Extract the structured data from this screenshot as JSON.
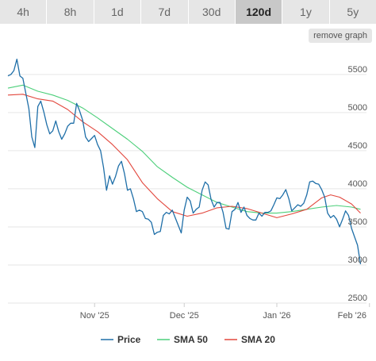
{
  "tabs": [
    {
      "label": "4h"
    },
    {
      "label": "8h"
    },
    {
      "label": "1d"
    },
    {
      "label": "7d"
    },
    {
      "label": "30d"
    },
    {
      "label": "120d",
      "active": true
    },
    {
      "label": "1y"
    },
    {
      "label": "5y"
    }
  ],
  "remove_graph_label": "remove graph",
  "colors": {
    "price": "#1f6fa8",
    "sma50": "#4ccf7a",
    "sma20": "#e2473d",
    "grid": "#e6e6e6",
    "active_tab": "#c8c8c8"
  },
  "chart_data": {
    "type": "line",
    "title": "",
    "xlabel": "",
    "ylabel": "",
    "x_range": [
      0,
      120
    ],
    "ylim": [
      2500,
      5800
    ],
    "y_ticks": [
      2500,
      3000,
      3500,
      4000,
      4500,
      5000,
      5500
    ],
    "y_tick_labels": [
      "2500",
      "3000",
      "3500",
      "4000",
      "4500",
      "5000",
      "5500"
    ],
    "x_ticks": [
      {
        "x": 29,
        "label": "Nov '25"
      },
      {
        "x": 59,
        "label": "Dec '25"
      },
      {
        "x": 90,
        "label": "Jan '26"
      },
      {
        "x": 121,
        "label": "Feb '26"
      }
    ],
    "grid": true,
    "legend_position": "bottom",
    "series": [
      {
        "name": "Price",
        "color": "#1f6fa8",
        "points": [
          [
            0,
            5480
          ],
          [
            1,
            5500
          ],
          [
            2,
            5550
          ],
          [
            3,
            5700
          ],
          [
            4,
            5480
          ],
          [
            5,
            5450
          ],
          [
            6,
            5250
          ],
          [
            7,
            5050
          ],
          [
            8,
            4680
          ],
          [
            9,
            4540
          ],
          [
            10,
            5080
          ],
          [
            11,
            5150
          ],
          [
            12,
            5010
          ],
          [
            13,
            4840
          ],
          [
            14,
            4720
          ],
          [
            15,
            4760
          ],
          [
            16,
            4890
          ],
          [
            17,
            4750
          ],
          [
            18,
            4650
          ],
          [
            19,
            4720
          ],
          [
            20,
            4820
          ],
          [
            21,
            4860
          ],
          [
            22,
            4860
          ],
          [
            23,
            5120
          ],
          [
            24,
            5020
          ],
          [
            25,
            4900
          ],
          [
            26,
            4680
          ],
          [
            27,
            4620
          ],
          [
            28,
            4660
          ],
          [
            29,
            4700
          ],
          [
            30,
            4580
          ],
          [
            31,
            4500
          ],
          [
            32,
            4280
          ],
          [
            33,
            3980
          ],
          [
            34,
            4170
          ],
          [
            35,
            4060
          ],
          [
            36,
            4160
          ],
          [
            37,
            4300
          ],
          [
            38,
            4360
          ],
          [
            39,
            4200
          ],
          [
            40,
            3980
          ],
          [
            41,
            4000
          ],
          [
            42,
            3870
          ],
          [
            43,
            3700
          ],
          [
            44,
            3720
          ],
          [
            45,
            3700
          ],
          [
            46,
            3610
          ],
          [
            47,
            3600
          ],
          [
            48,
            3560
          ],
          [
            49,
            3400
          ],
          [
            50,
            3430
          ],
          [
            51,
            3440
          ],
          [
            52,
            3650
          ],
          [
            53,
            3690
          ],
          [
            54,
            3670
          ],
          [
            55,
            3720
          ],
          [
            56,
            3620
          ],
          [
            57,
            3520
          ],
          [
            58,
            3420
          ],
          [
            59,
            3720
          ],
          [
            60,
            3890
          ],
          [
            61,
            3840
          ],
          [
            62,
            3680
          ],
          [
            63,
            3730
          ],
          [
            64,
            3760
          ],
          [
            65,
            3980
          ],
          [
            66,
            4090
          ],
          [
            67,
            4050
          ],
          [
            68,
            3860
          ],
          [
            69,
            3760
          ],
          [
            70,
            3820
          ],
          [
            71,
            3820
          ],
          [
            72,
            3690
          ],
          [
            73,
            3480
          ],
          [
            74,
            3470
          ],
          [
            75,
            3700
          ],
          [
            76,
            3730
          ],
          [
            77,
            3820
          ],
          [
            78,
            3690
          ],
          [
            79,
            3760
          ],
          [
            80,
            3650
          ],
          [
            81,
            3610
          ],
          [
            82,
            3590
          ],
          [
            83,
            3590
          ],
          [
            84,
            3680
          ],
          [
            85,
            3640
          ],
          [
            86,
            3690
          ],
          [
            87,
            3690
          ],
          [
            88,
            3710
          ],
          [
            89,
            3790
          ],
          [
            90,
            3880
          ],
          [
            91,
            3870
          ],
          [
            92,
            3920
          ],
          [
            93,
            3990
          ],
          [
            94,
            3870
          ],
          [
            95,
            3710
          ],
          [
            96,
            3750
          ],
          [
            97,
            3790
          ],
          [
            98,
            3770
          ],
          [
            99,
            3810
          ],
          [
            100,
            3920
          ],
          [
            101,
            4090
          ],
          [
            102,
            4100
          ],
          [
            103,
            4070
          ],
          [
            104,
            4060
          ],
          [
            105,
            3990
          ],
          [
            106,
            3890
          ],
          [
            107,
            3680
          ],
          [
            108,
            3620
          ],
          [
            109,
            3650
          ],
          [
            110,
            3600
          ],
          [
            111,
            3500
          ],
          [
            112,
            3600
          ],
          [
            113,
            3710
          ],
          [
            114,
            3650
          ],
          [
            115,
            3480
          ],
          [
            116,
            3370
          ],
          [
            117,
            3260
          ],
          [
            118,
            3010
          ]
        ]
      },
      {
        "name": "SMA 50",
        "color": "#4ccf7a",
        "points": [
          [
            0,
            5320
          ],
          [
            5,
            5360
          ],
          [
            10,
            5280
          ],
          [
            15,
            5230
          ],
          [
            20,
            5160
          ],
          [
            25,
            5060
          ],
          [
            30,
            4930
          ],
          [
            35,
            4790
          ],
          [
            40,
            4650
          ],
          [
            45,
            4490
          ],
          [
            50,
            4290
          ],
          [
            55,
            4150
          ],
          [
            60,
            4020
          ],
          [
            65,
            3920
          ],
          [
            70,
            3820
          ],
          [
            75,
            3760
          ],
          [
            80,
            3700
          ],
          [
            85,
            3680
          ],
          [
            90,
            3680
          ],
          [
            95,
            3700
          ],
          [
            100,
            3730
          ],
          [
            105,
            3760
          ],
          [
            110,
            3780
          ],
          [
            115,
            3760
          ],
          [
            118,
            3730
          ]
        ]
      },
      {
        "name": "SMA 20",
        "color": "#e2473d",
        "points": [
          [
            0,
            5230
          ],
          [
            5,
            5240
          ],
          [
            10,
            5180
          ],
          [
            15,
            5150
          ],
          [
            20,
            5040
          ],
          [
            25,
            4880
          ],
          [
            30,
            4750
          ],
          [
            35,
            4580
          ],
          [
            40,
            4380
          ],
          [
            45,
            4080
          ],
          [
            50,
            3870
          ],
          [
            55,
            3700
          ],
          [
            60,
            3640
          ],
          [
            65,
            3680
          ],
          [
            70,
            3750
          ],
          [
            75,
            3770
          ],
          [
            80,
            3740
          ],
          [
            85,
            3680
          ],
          [
            90,
            3620
          ],
          [
            95,
            3670
          ],
          [
            100,
            3730
          ],
          [
            105,
            3880
          ],
          [
            108,
            3920
          ],
          [
            111,
            3890
          ],
          [
            115,
            3800
          ],
          [
            118,
            3680
          ]
        ]
      }
    ]
  }
}
